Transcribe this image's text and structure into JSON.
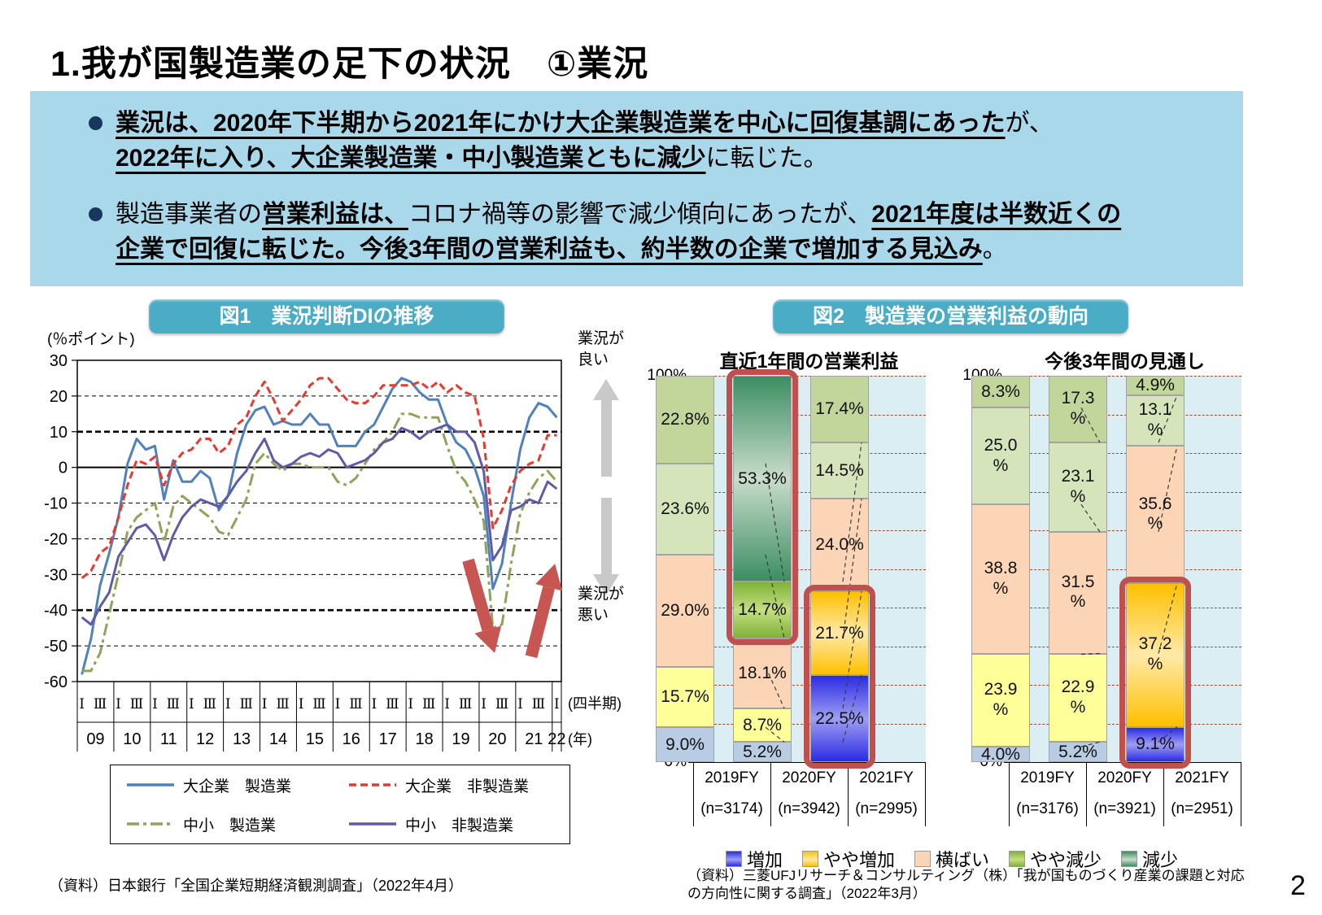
{
  "page": {
    "title": "1.我が国製造業の足下の状況　①業況",
    "page_number": "2"
  },
  "callout": {
    "bullets": [
      {
        "segments": [
          {
            "text": "業況は、2020年下半期から2021年にかけ大企業製造業を中心に回復基調にあった",
            "bold": true,
            "underline": true
          },
          {
            "text": "が、",
            "bold": false,
            "underline": false,
            "br": true
          },
          {
            "text": "2022年に入り、大企業製造業・中小製造業ともに減少",
            "bold": true,
            "underline": true
          },
          {
            "text": "に転じた。",
            "bold": false,
            "underline": false
          }
        ]
      },
      {
        "segments": [
          {
            "text": "製造事業者の",
            "bold": false,
            "underline": false
          },
          {
            "text": "営業利益は、",
            "bold": true,
            "underline": true
          },
          {
            "text": "コロナ禍等の影響で減少傾向にあったが、",
            "bold": false,
            "underline": false
          },
          {
            "text": "2021年度は半数近くの",
            "bold": true,
            "underline": true,
            "br": true
          },
          {
            "text": "企業で回復に転じた。",
            "bold": true,
            "underline": true
          },
          {
            "text": "今後3年間の営業利益も、約半数の企業で増加する見込み",
            "bold": true,
            "underline": true
          },
          {
            "text": "。",
            "bold": false,
            "underline": false
          }
        ]
      }
    ]
  },
  "fig1": {
    "header": "図1　業況判断DIの推移",
    "unit_label": "(％ポイント)",
    "good_label": "業況が良い",
    "bad_label": "業況が悪い",
    "quarter_axis_label": "(四半期)",
    "year_axis_label": "(年)"
  },
  "fig2": {
    "header": "図2　製造業の営業利益の動向",
    "plot_bg": "#daeef3",
    "grid_color": "#9c4a2f",
    "highlight_border": "#c0504d",
    "series_colors": {
      "増加": "#b8cce4",
      "やや増加": "#ffff99",
      "横ばい": "#fbd5b5",
      "やや減少": "#d6e4bc",
      "減少": "#c2d69b"
    },
    "highlight_gradients": {
      "増加": [
        "#2b2be4",
        "#9d9df4"
      ],
      "やや増加": [
        "#ffc000",
        "#ffe9a8"
      ],
      "やや減少": [
        "#7fb238",
        "#c5df82"
      ],
      "減少": [
        "#3c8e62",
        "#c8dcca"
      ]
    },
    "legend": [
      "増加",
      "やや増加",
      "横ばい",
      "やや減少",
      "減少"
    ]
  },
  "sources": {
    "fig1": "（資料）日本銀行「全国企業短期経済観測調査」（2022年4月）",
    "fig2": "（資料）三菱UFJリサーチ＆コンサルティング（株）「我が国ものづくり産業の課題と対応の方向性に関する調査」（2022年3月）"
  },
  "chart_data": [
    {
      "id": "di-line",
      "type": "line",
      "title": "業況判断DIの推移",
      "ylabel": "％ポイント",
      "ylim": [
        -60,
        30
      ],
      "ytick_step": 10,
      "bold_gridlines": [
        10,
        -40
      ],
      "grid": true,
      "legend_position": "bottom",
      "years": [
        "09",
        "10",
        "11",
        "12",
        "13",
        "14",
        "15",
        "16",
        "17",
        "18",
        "19",
        "20",
        "21",
        "22"
      ],
      "quarters_per_year": [
        4,
        4,
        4,
        4,
        4,
        4,
        4,
        4,
        4,
        4,
        4,
        4,
        4,
        1
      ],
      "quarter_tick_labels": [
        "Ⅰ",
        "Ⅲ"
      ],
      "series": [
        {
          "name": "大企業　製造業",
          "color": "#4f81bd",
          "dash": "solid",
          "values": [
            -58,
            -48,
            -33,
            -24,
            -14,
            1,
            8,
            5,
            6,
            -9,
            2,
            -4,
            -4,
            -1,
            -3,
            -12,
            -8,
            4,
            12,
            16,
            17,
            12,
            13,
            12,
            12,
            15,
            12,
            12,
            6,
            6,
            6,
            10,
            12,
            17,
            22,
            25,
            24,
            21,
            19,
            19,
            12,
            7,
            5,
            0,
            -8,
            -34,
            -27,
            -10,
            5,
            14,
            18,
            17,
            14
          ]
        },
        {
          "name": "大企業　非製造業",
          "color": "#e8392e",
          "dash": "dashed",
          "values": [
            -31,
            -29,
            -24,
            -22,
            -14,
            -5,
            2,
            1,
            3,
            -5,
            1,
            4,
            5,
            8,
            8,
            4,
            6,
            12,
            14,
            20,
            24,
            19,
            13,
            16,
            19,
            23,
            25,
            25,
            22,
            19,
            18,
            18,
            20,
            23,
            23,
            23,
            23,
            24,
            22,
            24,
            21,
            23,
            21,
            20,
            8,
            -17,
            -12,
            -5,
            -1,
            1,
            2,
            9,
            9
          ]
        },
        {
          "name": "中小　製造業",
          "color": "#8ea45b",
          "dash": "dashdot",
          "values": [
            -57,
            -57,
            -52,
            -41,
            -30,
            -18,
            -14,
            -12,
            -10,
            -21,
            -11,
            -8,
            -10,
            -12,
            -14,
            -18,
            -19,
            -14,
            -9,
            1,
            4,
            1,
            -1,
            1,
            1,
            0,
            0,
            0,
            -4,
            -5,
            -3,
            1,
            5,
            7,
            10,
            15,
            15,
            14,
            14,
            14,
            6,
            -1,
            -4,
            -9,
            -15,
            -45,
            -44,
            -27,
            -13,
            -7,
            -3,
            -1,
            -4
          ]
        },
        {
          "name": "中小　非製造業",
          "color": "#5f5ba6",
          "dash": "solid",
          "values": [
            -42,
            -44,
            -39,
            -35,
            -25,
            -21,
            -17,
            -16,
            -19,
            -26,
            -19,
            -14,
            -11,
            -9,
            -10,
            -11,
            -8,
            -4,
            -1,
            4,
            8,
            2,
            0,
            1,
            3,
            4,
            3,
            5,
            4,
            0,
            1,
            2,
            4,
            7,
            8,
            11,
            10,
            8,
            10,
            11,
            12,
            10,
            10,
            7,
            -1,
            -26,
            -22,
            -12,
            -11,
            -9,
            -10,
            -4,
            -6
          ]
        }
      ],
      "annotations": {
        "color": "#c75552",
        "arrows": [
          {
            "from": [
              42.8,
              -26
            ],
            "to": [
              45.7,
              -52
            ]
          },
          {
            "from": [
              49.7,
              -53
            ],
            "to": [
              52.3,
              -27
            ]
          }
        ]
      }
    },
    {
      "id": "profit-recent",
      "type": "bar",
      "stacked": true,
      "percent": true,
      "title": "直近1年間の営業利益",
      "ylim": [
        0,
        100
      ],
      "categories": [
        "2019FY",
        "2020FY",
        "2021FY"
      ],
      "n_labels": [
        "(n=3174)",
        "(n=3942)",
        "(n=2995)"
      ],
      "series": [
        {
          "name": "増加",
          "values": [
            9.0,
            5.2,
            22.5
          ]
        },
        {
          "name": "やや増加",
          "values": [
            15.7,
            8.7,
            21.7
          ]
        },
        {
          "name": "横ばい",
          "values": [
            29.0,
            18.1,
            24.0
          ]
        },
        {
          "name": "やや減少",
          "values": [
            23.6,
            14.7,
            14.5
          ]
        },
        {
          "name": "減少",
          "values": [
            22.8,
            53.3,
            17.4
          ]
        }
      ],
      "highlights": [
        {
          "category": "2020FY",
          "segments": [
            "やや減少",
            "減少"
          ]
        },
        {
          "category": "2021FY",
          "segments": [
            "増加",
            "やや増加"
          ]
        }
      ],
      "wrap_labels": false
    },
    {
      "id": "profit-outlook",
      "type": "bar",
      "stacked": true,
      "percent": true,
      "title": "今後3年間の見通し",
      "ylim": [
        0,
        100
      ],
      "categories": [
        "2019FY",
        "2020FY",
        "2021FY"
      ],
      "n_labels": [
        "(n=3176)",
        "(n=3921)",
        "(n=2951)"
      ],
      "series": [
        {
          "name": "増加",
          "values": [
            4.0,
            5.2,
            9.1
          ]
        },
        {
          "name": "やや増加",
          "values": [
            23.9,
            22.9,
            37.2
          ]
        },
        {
          "name": "横ばい",
          "values": [
            38.8,
            31.5,
            35.6
          ]
        },
        {
          "name": "やや減少",
          "values": [
            25.0,
            23.1,
            13.1
          ]
        },
        {
          "name": "減少",
          "values": [
            8.3,
            17.3,
            4.9
          ]
        }
      ],
      "highlights": [
        {
          "category": "2021FY",
          "segments": [
            "増加",
            "やや増加"
          ]
        }
      ],
      "wrap_labels": true
    }
  ]
}
